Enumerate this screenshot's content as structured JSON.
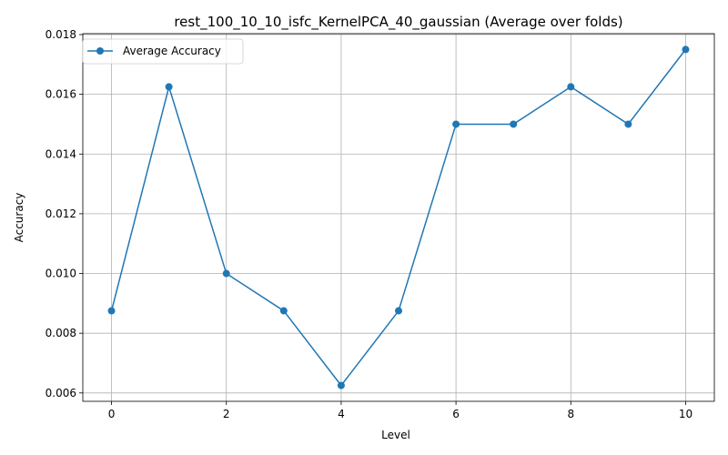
{
  "chart_data": {
    "type": "line",
    "title": "rest_100_10_10_isfc_KernelPCA_40_gaussian (Average over folds)",
    "xlabel": "Level",
    "ylabel": "Accuracy",
    "xlim": [
      -0.5,
      10.5
    ],
    "ylim": [
      0.00572,
      0.01803
    ],
    "x_ticks": [
      0,
      2,
      4,
      6,
      8,
      10
    ],
    "x_tick_labels": [
      "0",
      "2",
      "4",
      "6",
      "8",
      "10"
    ],
    "y_ticks": [
      0.006,
      0.008,
      0.01,
      0.012,
      0.014,
      0.016,
      0.018
    ],
    "y_tick_labels": [
      "0.006",
      "0.008",
      "0.010",
      "0.012",
      "0.014",
      "0.016",
      "0.018"
    ],
    "grid": true,
    "legend_position": "top-left",
    "series": [
      {
        "name": "Average Accuracy",
        "color": "#1f77b4",
        "marker": "circle",
        "x": [
          0,
          1,
          2,
          3,
          4,
          5,
          6,
          7,
          8,
          9,
          10
        ],
        "values": [
          0.00875,
          0.01625,
          0.01,
          0.00875,
          0.00625,
          0.00875,
          0.015,
          0.015,
          0.01625,
          0.015,
          0.0175
        ]
      }
    ]
  }
}
